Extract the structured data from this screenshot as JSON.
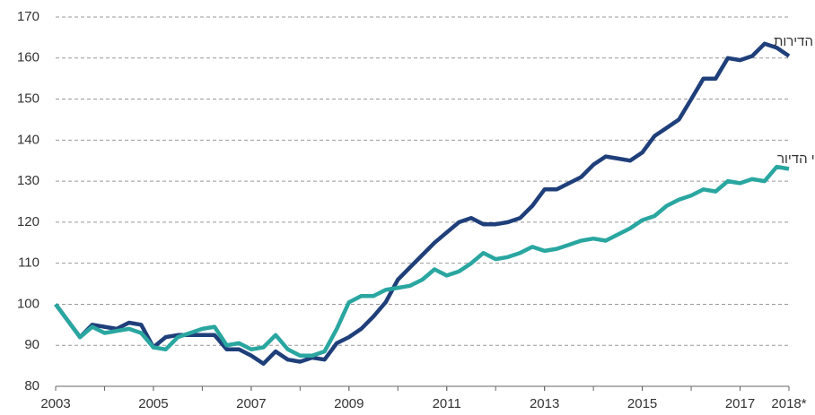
{
  "chart_data": {
    "type": "line",
    "x": [
      2003,
      2003.25,
      2003.5,
      2003.75,
      2004,
      2004.25,
      2004.5,
      2004.75,
      2005,
      2005.25,
      2005.5,
      2005.75,
      2006,
      2006.25,
      2006.5,
      2006.75,
      2007,
      2007.25,
      2007.5,
      2007.75,
      2008,
      2008.25,
      2008.5,
      2008.75,
      2009,
      2009.25,
      2009.5,
      2009.75,
      2010,
      2010.25,
      2010.5,
      2010.75,
      2011,
      2011.25,
      2011.5,
      2011.75,
      2012,
      2012.25,
      2012.5,
      2012.75,
      2013,
      2013.25,
      2013.5,
      2013.75,
      2014,
      2014.25,
      2014.5,
      2014.75,
      2015,
      2015.25,
      2015.5,
      2015.75,
      2016,
      2016.25,
      2016.5,
      2016.75,
      2017,
      2017.25,
      2017.5,
      2017.75,
      2018
    ],
    "series": [
      {
        "name": "מדד מחירי הדירות",
        "color": "#1f3f7a",
        "values": [
          100,
          96,
          92,
          95,
          94.5,
          94,
          95.5,
          95,
          89.5,
          92,
          92.5,
          92.5,
          92.5,
          92.5,
          89,
          89,
          87.5,
          85.5,
          88.5,
          86.5,
          86,
          87,
          86.5,
          90.5,
          92,
          94,
          97,
          100.5,
          106,
          109,
          112,
          115,
          117.5,
          120,
          121,
          119.5,
          119.5,
          120,
          121,
          124,
          128,
          128,
          129.5,
          131,
          134,
          136,
          135.5,
          135,
          137,
          141,
          143,
          145,
          150,
          155,
          155,
          160,
          159.5,
          160.5,
          163.5,
          162.5,
          160.5
        ]
      },
      {
        "name": "מדד מחירי הדיור",
        "color": "#2aa6a0",
        "values": [
          100,
          96,
          92,
          94.5,
          93,
          93.5,
          94,
          93,
          89.5,
          89,
          92,
          93,
          94,
          94.5,
          90,
          90.5,
          89,
          89.5,
          92.5,
          89,
          87.5,
          87.5,
          88.5,
          94,
          100.5,
          102,
          102,
          103.5,
          104,
          104.5,
          106,
          108.5,
          107,
          108,
          110,
          112.5,
          111,
          111.5,
          112.5,
          114,
          113,
          113.5,
          114.5,
          115.5,
          116,
          115.5,
          117,
          118.5,
          120.5,
          121.5,
          124,
          125.5,
          126.5,
          128,
          127.5,
          130,
          129.5,
          130.5,
          130,
          133.5,
          133
        ]
      }
    ],
    "xlim": [
      2003,
      2018
    ],
    "xticks": [
      2003,
      2005,
      2007,
      2009,
      2011,
      2013,
      2015,
      2017,
      {
        "value": 2018,
        "label": "2018*"
      }
    ],
    "ylim": [
      80,
      170
    ],
    "yticks": [
      80,
      90,
      100,
      110,
      120,
      130,
      140,
      150,
      160,
      170
    ],
    "grid": true
  }
}
